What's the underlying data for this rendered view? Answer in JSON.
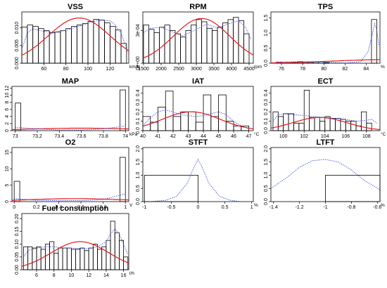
{
  "chart_data": [
    {
      "type": "bar",
      "title": "VSS",
      "unit": "km/h",
      "xlim": [
        40,
        137
      ],
      "ylim": [
        0,
        0.0145
      ],
      "xticks": [
        60,
        80,
        100,
        120
      ],
      "yticks": [
        0.0,
        0.005,
        0.01
      ],
      "ytick_labels": [
        "0.000",
        "0.005",
        "0.010"
      ],
      "bins": [
        [
          40,
          45
        ],
        [
          45,
          50
        ],
        [
          50,
          55
        ],
        [
          55,
          60
        ],
        [
          60,
          65
        ],
        [
          65,
          70
        ],
        [
          70,
          75
        ],
        [
          75,
          80
        ],
        [
          80,
          85
        ],
        [
          85,
          90
        ],
        [
          90,
          95
        ],
        [
          95,
          100
        ],
        [
          100,
          105
        ],
        [
          105,
          110
        ],
        [
          110,
          115
        ],
        [
          115,
          120
        ],
        [
          120,
          125
        ],
        [
          125,
          130
        ],
        [
          130,
          135
        ]
      ],
      "values": [
        0.0102,
        0.0108,
        0.0104,
        0.0098,
        0.0092,
        0.0086,
        0.0088,
        0.0092,
        0.0098,
        0.0104,
        0.0108,
        0.0112,
        0.0118,
        0.0124,
        0.0122,
        0.0114,
        0.0104,
        0.0094,
        0.0056
      ],
      "normal_fit": {
        "mean": 92,
        "sd": 28,
        "peak": 0.0128
      },
      "density": {
        "x": [
          40,
          45,
          50,
          55,
          60,
          70,
          80,
          90,
          100,
          110,
          120,
          125,
          130,
          133,
          136
        ],
        "y": [
          0.004,
          0.0085,
          0.0098,
          0.0094,
          0.009,
          0.0088,
          0.0093,
          0.0103,
          0.0113,
          0.0122,
          0.012,
          0.0108,
          0.0085,
          0.006,
          0.003
        ]
      }
    },
    {
      "type": "bar",
      "title": "RPM",
      "unit": "rpm",
      "xlim": [
        1480,
        4620
      ],
      "ylim": [
        0,
        0.00047
      ],
      "xticks": [
        1500,
        2000,
        2500,
        3000,
        3500,
        4000,
        4500
      ],
      "yticks": [
        0,
        0.0003
      ],
      "ytick_labels": [
        "0e+00",
        "3e-04"
      ],
      "bins": [
        [
          1500,
          1650
        ],
        [
          1650,
          1800
        ],
        [
          1800,
          1950
        ],
        [
          1950,
          2100
        ],
        [
          2100,
          2250
        ],
        [
          2250,
          2400
        ],
        [
          2400,
          2550
        ],
        [
          2550,
          2700
        ],
        [
          2700,
          2850
        ],
        [
          2850,
          3000
        ],
        [
          3000,
          3150
        ],
        [
          3150,
          3300
        ],
        [
          3300,
          3450
        ],
        [
          3450,
          3600
        ],
        [
          3600,
          3750
        ],
        [
          3750,
          3900
        ],
        [
          3900,
          4050
        ],
        [
          4050,
          4200
        ],
        [
          4200,
          4350
        ],
        [
          4350,
          4500
        ]
      ],
      "values": [
        0.00035,
        0.00031,
        0.00028,
        0.00033,
        0.00035,
        0.0003,
        0.00027,
        0.00024,
        0.0003,
        0.00035,
        0.0004,
        0.00038,
        0.00032,
        0.0003,
        0.00033,
        0.00037,
        0.0004,
        0.00042,
        0.00039,
        0.00027
      ],
      "normal_fit": {
        "mean": 3150,
        "sd": 800,
        "peak": 0.00041
      },
      "density": {
        "x": [
          1500,
          1700,
          2000,
          2300,
          2600,
          3000,
          3300,
          3600,
          3900,
          4200,
          4400,
          4550
        ],
        "y": [
          0.00028,
          0.00032,
          0.00033,
          0.00029,
          0.00025,
          0.00031,
          0.00036,
          0.00032,
          0.00036,
          0.00039,
          0.00033,
          0.00022
        ]
      }
    },
    {
      "type": "bar",
      "title": "TPS",
      "unit": "%",
      "xlim": [
        75,
        85.3
      ],
      "ylim": [
        0,
        1.7
      ],
      "xticks": [
        76,
        78,
        80,
        82,
        84
      ],
      "yticks": [
        0.0,
        0.5,
        1.0,
        1.5
      ],
      "ytick_labels": [
        "0.0",
        "0.5",
        "1.0",
        "1.5"
      ],
      "bins": [
        [
          75.5,
          76
        ],
        [
          76,
          76.5
        ],
        [
          76.5,
          77
        ],
        [
          77,
          77.5
        ],
        [
          77.5,
          78
        ],
        [
          78,
          78.5
        ],
        [
          78.5,
          79
        ],
        [
          79,
          79.5
        ],
        [
          79.5,
          80
        ],
        [
          80,
          80.5
        ],
        [
          84.5,
          85
        ]
      ],
      "values": [
        0.03,
        0.02,
        0.02,
        0.03,
        0.05,
        0.03,
        0.03,
        0.04,
        0.05,
        0.02,
        1.45
      ],
      "normal_fit": {
        "mean": 86,
        "sd": 5,
        "peak": 0.12
      },
      "density": {
        "x": [
          75.5,
          77,
          78.5,
          80,
          82,
          83.5,
          84.2,
          84.6,
          84.8,
          85,
          85.2
        ],
        "y": [
          0.04,
          0.05,
          0.05,
          0.04,
          0.01,
          0.05,
          0.4,
          1.0,
          1.3,
          1.1,
          0.6
        ]
      }
    },
    {
      "type": "bar",
      "title": "MAP",
      "unit": "kPa",
      "xlim": [
        72.97,
        74.03
      ],
      "ylim": [
        0,
        12.5
      ],
      "xticks": [
        73.0,
        73.2,
        73.4,
        73.6,
        73.8,
        74.0
      ],
      "yticks": [
        0,
        2,
        4,
        6,
        8,
        10,
        12
      ],
      "ytick_labels": [
        "0",
        "2",
        "4",
        "6",
        "8",
        "10",
        "12"
      ],
      "bins": [
        [
          73.0,
          73.05
        ],
        [
          73.95,
          74.0
        ]
      ],
      "values": [
        7.8,
        11.5
      ],
      "normal_fit": {
        "mean": 73.6,
        "sd": 0.5,
        "peak": 0.7
      },
      "density": {
        "x": [
          73.0,
          73.2,
          73.4,
          73.6,
          73.8,
          74.0
        ],
        "y": [
          1.0,
          0.5,
          0.2,
          0.2,
          0.5,
          1.3
        ]
      }
    },
    {
      "type": "bar",
      "title": "IAT",
      "unit": "°C",
      "xlim": [
        40,
        47.3
      ],
      "ylim": [
        0,
        0.47
      ],
      "xticks": [
        40,
        41,
        42,
        43,
        44,
        45,
        46,
        47
      ],
      "yticks": [
        0.0,
        0.1,
        0.2,
        0.3,
        0.4
      ],
      "ytick_labels": [
        "0.0",
        "0.1",
        "0.2",
        "0.3",
        "0.4"
      ],
      "bins": [
        [
          40,
          40.5
        ],
        [
          40.5,
          41
        ],
        [
          41,
          41.5
        ],
        [
          41.5,
          42
        ],
        [
          42,
          42.5
        ],
        [
          42.5,
          43
        ],
        [
          43,
          43.5
        ],
        [
          43.5,
          44
        ],
        [
          44,
          44.5
        ],
        [
          44.5,
          45
        ],
        [
          45,
          45.5
        ],
        [
          45.5,
          46
        ],
        [
          46,
          46.5
        ],
        [
          46.5,
          47
        ]
      ],
      "values": [
        0.15,
        0.09,
        0.25,
        0.42,
        0.15,
        0.2,
        0.2,
        0.09,
        0.38,
        0.15,
        0.38,
        0.1,
        0.05,
        0.05
      ],
      "normal_fit": {
        "mean": 43.2,
        "sd": 1.9,
        "peak": 0.2
      },
      "density": {
        "x": [
          40,
          40.5,
          41,
          41.5,
          42,
          42.5,
          43,
          43.5,
          44,
          44.5,
          45,
          45.5,
          46,
          46.5,
          47
        ],
        "y": [
          0.05,
          0.14,
          0.2,
          0.22,
          0.2,
          0.17,
          0.16,
          0.15,
          0.16,
          0.18,
          0.2,
          0.17,
          0.1,
          0.05,
          0.02
        ]
      }
    },
    {
      "type": "bar",
      "title": "ECT",
      "unit": "°C",
      "xlim": [
        98.8,
        109.3
      ],
      "ylim": [
        0,
        0.47
      ],
      "xticks": [
        100,
        102,
        104,
        106,
        108
      ],
      "yticks": [
        0.0,
        0.1,
        0.2,
        0.3,
        0.4
      ],
      "ytick_labels": [
        "0.0",
        "0.1",
        "0.2",
        "0.3",
        "0.4"
      ],
      "bins": [
        [
          99,
          99.5
        ],
        [
          99.5,
          100
        ],
        [
          100,
          100.5
        ],
        [
          100.5,
          101
        ],
        [
          101,
          101.5
        ],
        [
          101.5,
          102
        ],
        [
          102,
          102.5
        ],
        [
          102.5,
          103
        ],
        [
          103,
          103.5
        ],
        [
          103.5,
          104
        ],
        [
          104,
          104.5
        ],
        [
          104.5,
          105
        ],
        [
          105,
          105.5
        ],
        [
          105.5,
          106
        ],
        [
          106,
          106.5
        ],
        [
          106.5,
          107
        ],
        [
          107,
          107.5
        ],
        [
          107.5,
          108
        ],
        [
          108,
          108.5
        ]
      ],
      "values": [
        0.2,
        0.15,
        0.18,
        0.18,
        0.08,
        0.08,
        0.43,
        0.14,
        0.14,
        0.1,
        0.15,
        0.13,
        0.13,
        0.12,
        0.1,
        0.1,
        0.05,
        0.2,
        0.08
      ],
      "normal_fit": {
        "mean": 103.5,
        "sd": 2.6,
        "peak": 0.14
      },
      "density": {
        "x": [
          99,
          99.5,
          100,
          101,
          102,
          103,
          104,
          105,
          106,
          107,
          108,
          108.5,
          109
        ],
        "y": [
          0.1,
          0.17,
          0.18,
          0.17,
          0.16,
          0.15,
          0.14,
          0.13,
          0.12,
          0.1,
          0.11,
          0.12,
          0.08
        ]
      }
    },
    {
      "type": "bar",
      "title": "O2",
      "unit": "V",
      "xlim": [
        -0.02,
        1.03
      ],
      "ylim": [
        0,
        16.5
      ],
      "xticks": [
        0.0,
        0.2,
        0.4,
        0.6,
        0.8,
        1.0
      ],
      "yticks": [
        0,
        5,
        10,
        15
      ],
      "ytick_labels": [
        "0",
        "5",
        "10",
        "15"
      ],
      "bins": [
        [
          0.0,
          0.05
        ],
        [
          0.95,
          1.0
        ]
      ],
      "values": [
        6.2,
        13.5
      ],
      "normal_fit": {
        "mean": 0.55,
        "sd": 0.45,
        "peak": 0.9
      },
      "density": {
        "x": [
          0.0,
          0.2,
          0.4,
          0.6,
          0.8,
          1.0
        ],
        "y": [
          0.9,
          0.4,
          0.3,
          0.3,
          0.6,
          2.4
        ]
      }
    },
    {
      "type": "bar",
      "title": "STFT",
      "unit": "%",
      "xlim": [
        -1.03,
        1.03
      ],
      "ylim": [
        0,
        2.05
      ],
      "xticks": [
        -1.0,
        -0.5,
        0.0,
        0.5,
        1.0
      ],
      "yticks": [
        0.0,
        0.5,
        1.0,
        1.5,
        2.0
      ],
      "ytick_labels": [
        "0.0",
        "0.5",
        "1.0",
        "1.5",
        "2.0"
      ],
      "bins": [
        [
          -1.0,
          0.0
        ]
      ],
      "values": [
        1.0
      ],
      "normal_fit": null,
      "density": {
        "x": [
          -0.9,
          -0.6,
          -0.4,
          -0.2,
          -0.1,
          0.0,
          0.1,
          0.2,
          0.4,
          0.6,
          0.8
        ],
        "y": [
          0.0,
          0.05,
          0.2,
          0.7,
          1.2,
          1.6,
          1.2,
          0.7,
          0.2,
          0.05,
          0.0
        ]
      }
    },
    {
      "type": "bar",
      "title": "LTFT",
      "unit": "%",
      "xlim": [
        -1.42,
        -0.58
      ],
      "ylim": [
        0,
        2.05
      ],
      "xticks": [
        -1.4,
        -1.2,
        -1.0,
        -0.8,
        -0.6
      ],
      "yticks": [
        0.0,
        0.5,
        1.0,
        1.5,
        2.0
      ],
      "ytick_labels": [
        "0.0",
        "0.5",
        "1.0",
        "1.5",
        "2.0"
      ],
      "bins": [
        [
          -1.0,
          -0.58
        ]
      ],
      "values": [
        1.0
      ],
      "normal_fit": null,
      "density": {
        "x": [
          -1.42,
          -1.3,
          -1.2,
          -1.1,
          -1.0,
          -0.9,
          -0.8,
          -0.7,
          -0.58
        ],
        "y": [
          0.5,
          0.9,
          1.3,
          1.55,
          1.6,
          1.5,
          1.2,
          0.8,
          0.45
        ]
      }
    },
    {
      "type": "bar",
      "title": "Fuel consumption",
      "unit": "l/h",
      "xlim": [
        4.3,
        16.6
      ],
      "ylim": [
        0,
        0.22
      ],
      "xticks": [
        6,
        8,
        10,
        12,
        14,
        16
      ],
      "yticks": [
        0.0,
        0.05,
        0.1,
        0.15,
        0.2
      ],
      "ytick_labels": [
        "0.00",
        "0.05",
        "0.10",
        "0.15",
        "0.20"
      ],
      "bins": [
        [
          4.5,
          5
        ],
        [
          5,
          5.5
        ],
        [
          5.5,
          6
        ],
        [
          6,
          6.5
        ],
        [
          6.5,
          7
        ],
        [
          7,
          7.5
        ],
        [
          7.5,
          8
        ],
        [
          8,
          8.5
        ],
        [
          8.5,
          9
        ],
        [
          9,
          9.5
        ],
        [
          9.5,
          10
        ],
        [
          10,
          10.5
        ],
        [
          10.5,
          11
        ],
        [
          11,
          11.5
        ],
        [
          11.5,
          12
        ],
        [
          12,
          12.5
        ],
        [
          12.5,
          13
        ],
        [
          13,
          13.5
        ],
        [
          13.5,
          14
        ],
        [
          14,
          14.5
        ],
        [
          14.5,
          15
        ],
        [
          15,
          15.5
        ],
        [
          15.5,
          16
        ],
        [
          16,
          16.5
        ]
      ],
      "values": [
        0.09,
        0.09,
        0.085,
        0.09,
        0.08,
        0.1,
        0.11,
        0.065,
        0.085,
        0.085,
        0.085,
        0.08,
        0.08,
        0.085,
        0.075,
        0.085,
        0.1,
        0.08,
        0.09,
        0.115,
        0.19,
        0.145,
        0.115,
        0.05
      ],
      "normal_fit": {
        "mean": 11,
        "sd": 3.3,
        "peak": 0.11
      },
      "density": {
        "x": [
          4.5,
          5,
          6,
          7,
          8,
          9,
          10,
          11,
          12,
          13,
          14,
          14.5,
          15,
          15.5,
          16,
          16.5
        ],
        "y": [
          0.05,
          0.075,
          0.085,
          0.09,
          0.09,
          0.085,
          0.085,
          0.083,
          0.083,
          0.09,
          0.11,
          0.14,
          0.16,
          0.14,
          0.1,
          0.06
        ]
      }
    }
  ]
}
